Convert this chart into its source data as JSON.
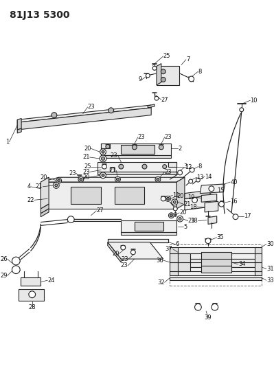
{
  "title": "81J13 5300",
  "bg_color": "#ffffff",
  "line_color": "#222222",
  "label_color": "#111111",
  "title_fontsize": 10,
  "label_fontsize": 6.0
}
